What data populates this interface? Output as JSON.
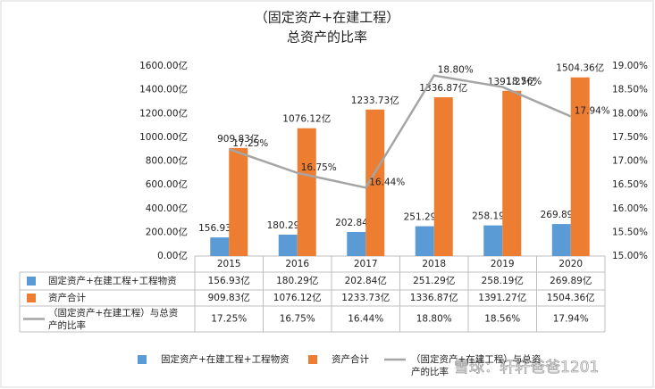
{
  "chart_data": {
    "type": "bar_line",
    "title": "（固定资产+在建工程）",
    "subtitle": "总资产的比率",
    "categories": [
      "2015",
      "2016",
      "2017",
      "2018",
      "2019",
      "2020"
    ],
    "series": [
      {
        "name": "固定资产+在建工程+工程物资",
        "type": "bar",
        "color": "#5b9bd5",
        "values": [
          156.93,
          180.29,
          202.84,
          251.29,
          258.19,
          269.89
        ],
        "value_labels": [
          "156.93亿",
          "180.29亿",
          "202.84亿",
          "251.29亿",
          "258.19亿",
          "269.89亿"
        ]
      },
      {
        "name": "资产合计",
        "type": "bar",
        "color": "#ed7d31",
        "values": [
          909.83,
          1076.12,
          1233.73,
          1336.87,
          1391.27,
          1504.36
        ],
        "value_labels": [
          "909.83亿",
          "1076.12亿",
          "1233.73亿",
          "1336.87亿",
          "1391.27亿",
          "1504.36亿"
        ]
      },
      {
        "name": "（固定资产+在建工程）与总资产的比率",
        "type": "line",
        "axis": "y2",
        "color": "#a5a5a5",
        "values": [
          17.25,
          16.75,
          16.44,
          18.8,
          18.56,
          17.94
        ],
        "value_labels": [
          "17.25%",
          "16.75%",
          "16.44%",
          "18.80%",
          "18.56%",
          "17.94%"
        ]
      }
    ],
    "ylim": [
      0,
      1600
    ],
    "yticks": [
      {
        "value": 0,
        "label": "0.00亿"
      },
      {
        "value": 200,
        "label": "200.00亿"
      },
      {
        "value": 400,
        "label": "400.00亿"
      },
      {
        "value": 600,
        "label": "600.00亿"
      },
      {
        "value": 800,
        "label": "800.00亿"
      },
      {
        "value": 1000,
        "label": "1000.00亿"
      },
      {
        "value": 1200,
        "label": "1200.00亿"
      },
      {
        "value": 1400,
        "label": "1400.00亿"
      },
      {
        "value": 1600,
        "label": "1600.00亿"
      }
    ],
    "y2lim": [
      15,
      19
    ],
    "y2ticks": [
      {
        "value": 15,
        "label": "15.00%"
      },
      {
        "value": 15.5,
        "label": "15.50%"
      },
      {
        "value": 16,
        "label": "16.00%"
      },
      {
        "value": 16.5,
        "label": "16.50%"
      },
      {
        "value": 17,
        "label": "17.00%"
      },
      {
        "value": 17.5,
        "label": "17.50%"
      },
      {
        "value": 18,
        "label": "18.00%"
      },
      {
        "value": 18.5,
        "label": "18.50%"
      },
      {
        "value": 19,
        "label": "19.00%"
      }
    ],
    "grid": false,
    "data_table": true,
    "legend": "bottom",
    "watermark": "雪球：轩轩爸爸1201"
  }
}
